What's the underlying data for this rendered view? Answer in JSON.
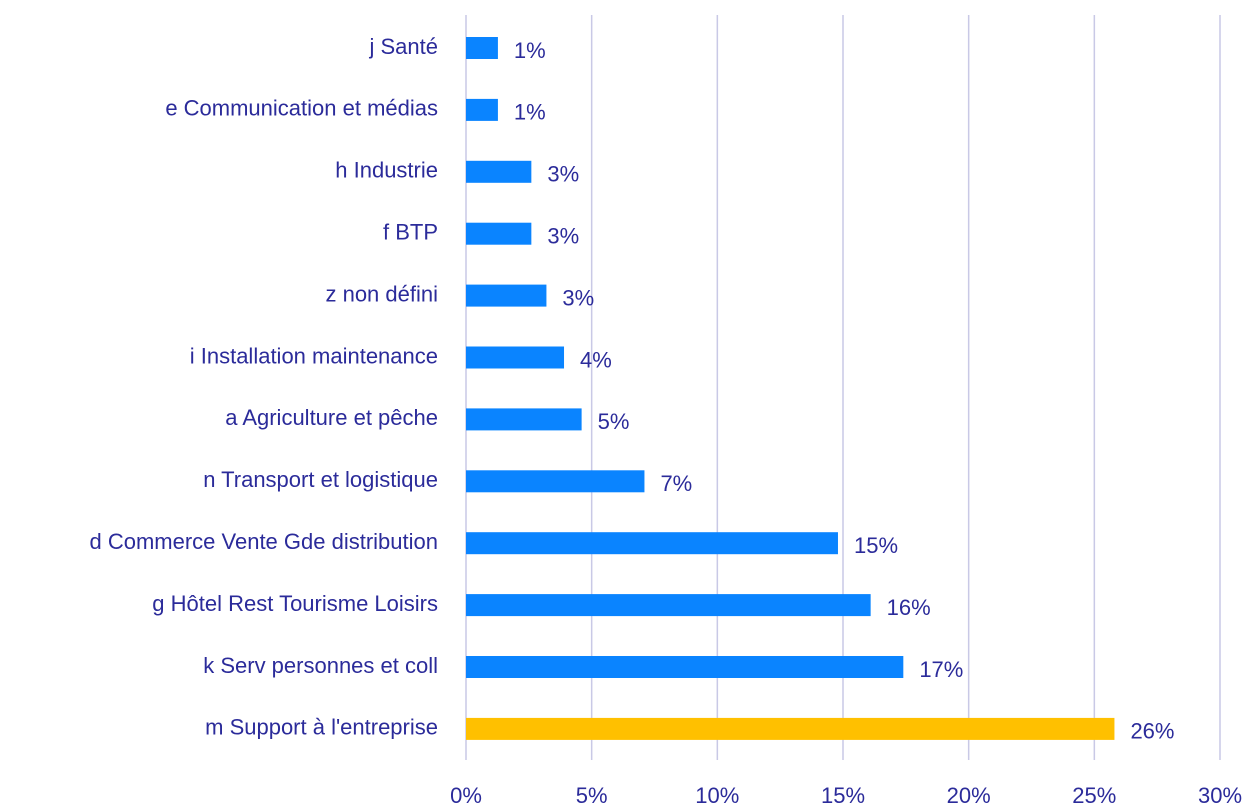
{
  "chart_data": {
    "type": "barh",
    "categories": [
      "j Santé",
      "e Communication et médias",
      "h Industrie",
      "f BTP",
      "z non défini",
      "i Installation maintenance",
      "a Agriculture et pêche",
      "n Transport et logistique",
      "d Commerce Vente Gde distribution",
      "g Hôtel Rest Tourisme Loisirs",
      "k Serv personnes et coll",
      "m Support à l'entreprise"
    ],
    "values": [
      1.27,
      1.27,
      2.6,
      2.6,
      3.2,
      3.9,
      4.6,
      7.1,
      14.8,
      16.1,
      17.4,
      25.8
    ],
    "value_labels": [
      "1%",
      "1%",
      "3%",
      "3%",
      "3%",
      "4%",
      "5%",
      "7%",
      "15%",
      "16%",
      "17%",
      "26%"
    ],
    "colors": [
      "#0a84ff",
      "#0a84ff",
      "#0a84ff",
      "#0a84ff",
      "#0a84ff",
      "#0a84ff",
      "#0a84ff",
      "#0a84ff",
      "#0a84ff",
      "#0a84ff",
      "#0a84ff",
      "#ffc000"
    ],
    "xlim": [
      0,
      30
    ],
    "xticks": [
      {
        "value": 0,
        "label": "0%"
      },
      {
        "value": 5,
        "label": "5%"
      },
      {
        "value": 10,
        "label": "10%"
      },
      {
        "value": 15,
        "label": "15%"
      },
      {
        "value": 20,
        "label": "20%"
      },
      {
        "value": 25,
        "label": "25%"
      },
      {
        "value": 30,
        "label": "30%"
      }
    ],
    "grid": true
  }
}
